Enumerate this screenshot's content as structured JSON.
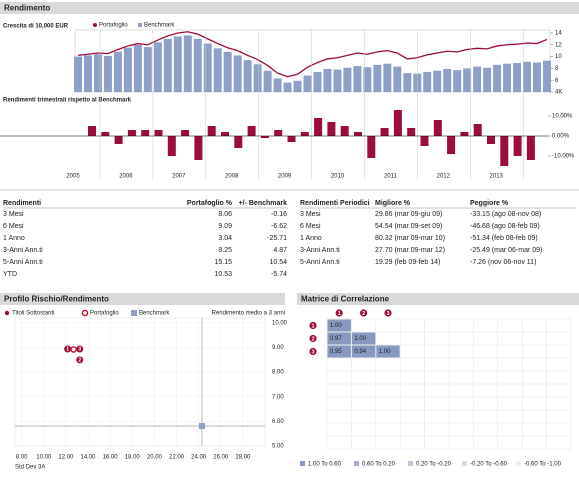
{
  "header": {
    "title": "Rendimento",
    "risk_title": "Profilo Rischio/Rendimento",
    "corr_title": "Matrice di Correlazione"
  },
  "chart_data": [
    {
      "type": "combo",
      "title": "Crescita di 10,000 EUR",
      "ylim": [
        4,
        14.5
      ],
      "yticks": [
        {
          "value": 14,
          "label": "14"
        },
        {
          "value": 12,
          "label": "12"
        },
        {
          "value": 10,
          "label": "10"
        },
        {
          "value": 8,
          "label": "8"
        },
        {
          "value": 6,
          "label": "6"
        },
        {
          "value": 4,
          "label": "4K"
        }
      ],
      "series": [
        {
          "name": "Portafoglio",
          "color": "#9b0d3a",
          "kind": "line",
          "values": [
            10.2,
            10.4,
            10.6,
            10.5,
            11.2,
            11.8,
            12.2,
            12.0,
            12.8,
            13.5,
            14.0,
            14.2,
            13.8,
            13.0,
            12.2,
            11.5,
            11.0,
            10.2,
            9.5,
            8.5,
            7.2,
            6.6,
            7.0,
            8.2,
            9.0,
            9.6,
            9.8,
            10.2,
            10.6,
            10.4,
            10.8,
            11.0,
            10.6,
            9.6,
            9.8,
            10.3,
            10.6,
            10.9,
            10.8,
            11.2,
            11.4,
            11.3,
            11.8,
            12.0,
            12.1,
            12.3,
            12.2,
            12.9
          ]
        },
        {
          "name": "Benchmark",
          "color": "#8ea0c6",
          "kind": "bar",
          "values": [
            10.0,
            10.2,
            10.4,
            10.1,
            10.8,
            11.5,
            12.0,
            11.6,
            12.4,
            13.0,
            13.4,
            13.6,
            13.0,
            12.2,
            11.4,
            10.8,
            10.2,
            9.4,
            8.7,
            7.6,
            6.3,
            5.6,
            5.9,
            6.8,
            7.4,
            7.9,
            7.8,
            8.1,
            8.4,
            8.2,
            8.6,
            8.8,
            8.3,
            7.2,
            7.1,
            7.4,
            7.6,
            7.9,
            7.7,
            8.0,
            8.3,
            8.1,
            8.6,
            8.8,
            8.9,
            9.1,
            9.0,
            9.3
          ]
        }
      ]
    },
    {
      "type": "bar",
      "title": "Rendimenti trimestrali rispetto al Benchmark",
      "color": "#9b0d3a",
      "ylim": [
        -15,
        15
      ],
      "yticks": [
        {
          "value": 10,
          "label": "10.00%"
        },
        {
          "value": 0,
          "label": "0.00%"
        },
        {
          "value": -10,
          "label": "-10.00%"
        }
      ],
      "values": [
        5,
        2,
        -4,
        3,
        3,
        3,
        -10,
        3,
        -12,
        5,
        2,
        -6,
        5,
        -1,
        3,
        -3,
        2,
        9,
        7,
        5,
        2,
        -11,
        4,
        13,
        4,
        -5,
        8,
        -9,
        2,
        6,
        -4,
        -15,
        -10,
        -12
      ],
      "year_labels": [
        "2005",
        "2006",
        "2007",
        "2008",
        "2009",
        "2010",
        "2011",
        "2012",
        "2013"
      ]
    },
    {
      "type": "scatter",
      "y_title": "Rendimento medio a 3 anni",
      "x_title": "Std Dev 3A",
      "xlim": [
        7.4,
        30
      ],
      "xticks": [
        {
          "value": 8,
          "label": "8.00"
        },
        {
          "value": 10,
          "label": "10.00"
        },
        {
          "value": 12,
          "label": "12.00"
        },
        {
          "value": 14,
          "label": "14.00"
        },
        {
          "value": 16,
          "label": "16.00"
        },
        {
          "value": 18,
          "label": "18.00"
        },
        {
          "value": 20,
          "label": "20.00"
        },
        {
          "value": 22,
          "label": "22.00"
        },
        {
          "value": 24,
          "label": "24.00"
        },
        {
          "value": 26,
          "label": "26.00"
        },
        {
          "value": 28,
          "label": "28.00"
        }
      ],
      "ylim": [
        5,
        10.2
      ],
      "yticks": [
        {
          "value": 10,
          "label": "10.00"
        },
        {
          "value": 9,
          "label": "9.00"
        },
        {
          "value": 8,
          "label": "8.00"
        },
        {
          "value": 7,
          "label": "7.00"
        },
        {
          "value": 6,
          "label": "6.00"
        },
        {
          "value": 5,
          "label": "5.00"
        }
      ],
      "series": [
        {
          "name": "Titoli Sottostanti",
          "color": "#9b0d3a",
          "marker": "numbered",
          "x": [
            12.16,
            13.25,
            13.25
          ],
          "values": [
            8.94,
            8.5,
            8.94
          ],
          "point_labels": [
            "1",
            "2",
            "3"
          ]
        },
        {
          "name": "Portafoglio",
          "color": "#c8102e",
          "marker": "ring",
          "x": [
            12.7
          ],
          "values": [
            8.92
          ]
        },
        {
          "name": "Benchmark",
          "color": "#8ea0c6",
          "marker": "square",
          "x": [
            24.3
          ],
          "values": [
            5.81
          ]
        }
      ]
    }
  ],
  "returns_table": {
    "headers": [
      "Rendimenti",
      "Portafoglio %",
      "+/- Benchmark"
    ],
    "rows": [
      [
        "3 Mesi",
        "8.06",
        "-0.16"
      ],
      [
        "6 Mesi",
        "9.09",
        "-6.62"
      ],
      [
        "1 Anno",
        "3.04",
        "-25.71"
      ],
      [
        "3-Anni Ann.ti",
        "8.25",
        "4.87"
      ],
      [
        "5-Anni Ann.ti",
        "15.15",
        "10.54"
      ],
      [
        "YTD",
        "10.53",
        "-5.74"
      ]
    ]
  },
  "periodic_table": {
    "headers": [
      "Rendimenti Periodici",
      "Migliore %",
      "Peggiore %"
    ],
    "rows": [
      [
        "3 Mesi",
        "29.86 (mar 09-giu 09)",
        "-33.15 (ago 08-nov 08)"
      ],
      [
        "6 Mesi",
        "54.54 (mar 09-set 09)",
        "-46.68 (ago 08-feb 09)"
      ],
      [
        "1 Anno",
        "80.32 (mar 09-mar 10)",
        "-51.34 (feb 08-feb 09)"
      ],
      [
        "3-Anni Ann.ti",
        "27.70 (mar 09-mar 12)",
        "-25.49 (mar 06-mar 09)"
      ],
      [
        "5-Anni Ann.ti",
        "19.29 (feb 09-feb 14)",
        "-7.26 (nov 06-nov 11)"
      ]
    ]
  },
  "correlation": {
    "labels": [
      "1",
      "2",
      "3"
    ],
    "cells": [
      [
        "1.00"
      ],
      [
        "0.97",
        "1.00"
      ],
      [
        "0.95",
        "0.94",
        "1.00"
      ]
    ],
    "legend": [
      {
        "label": "1.00 To 0.60",
        "color": "#8799c0",
        "min": 0.6
      },
      {
        "label": "0.60 To 0.20",
        "color": "#a6b3d0",
        "min": 0.2
      },
      {
        "label": "0.20 To -0.20",
        "color": "#c3cadb",
        "min": -0.2
      },
      {
        "label": "-0.20 To -0.60",
        "color": "#d9dde7",
        "min": -0.6
      },
      {
        "label": "-0.60 To -1.00",
        "color": "#eceef3",
        "min": -1
      }
    ]
  }
}
